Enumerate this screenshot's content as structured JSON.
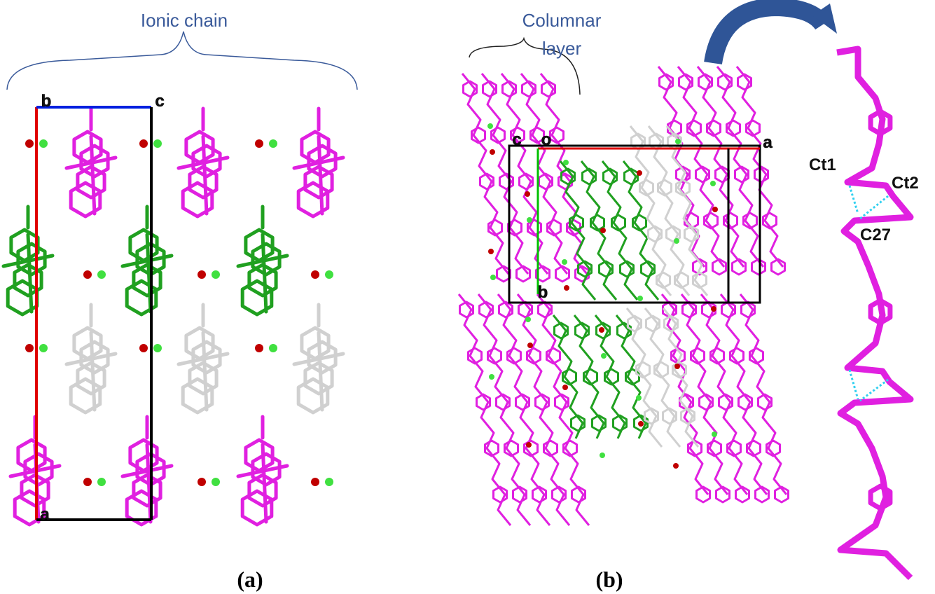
{
  "panel_a": {
    "title": "Ionic chain",
    "axis_labels": [
      "b",
      "c",
      "a"
    ],
    "caption": "(a)"
  },
  "panel_b": {
    "title_lines": [
      "Columnar",
      "layer"
    ],
    "axis_labels": [
      "c",
      "o",
      "a",
      "b"
    ],
    "caption": "(b)"
  },
  "panel_c": {
    "labels": [
      "Ct1",
      "Ct2",
      "C27"
    ]
  }
}
